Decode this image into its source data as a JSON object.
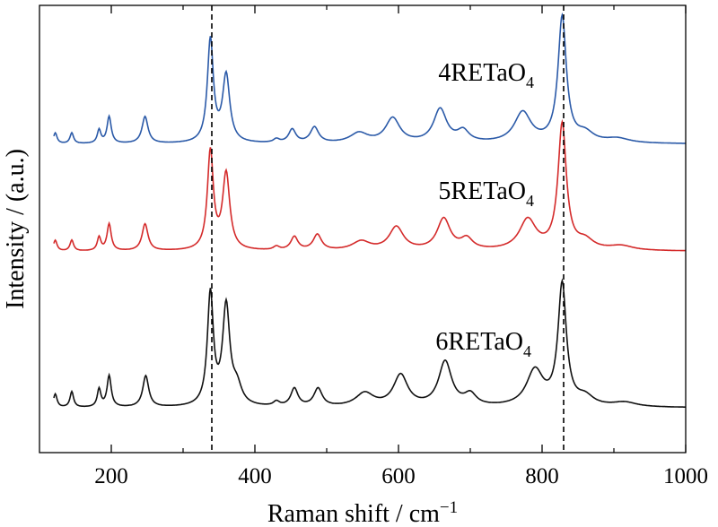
{
  "chart_data": {
    "type": "line",
    "xlabel_main": "Raman shift / cm",
    "xlabel_sup": "−1",
    "ylabel": "Intensity / (a.u.)",
    "xlim": [
      100,
      1000
    ],
    "x_ticks": [
      200,
      400,
      600,
      800,
      1000
    ],
    "x_minor_ticks": [
      300,
      500,
      700,
      900
    ],
    "y_ticks": "none",
    "grid": false,
    "reference_lines_x": [
      340,
      830
    ],
    "series": [
      {
        "name": "4RETaO4",
        "label_main": "4RETaO",
        "label_sub": "4",
        "color": "#2b5aa8",
        "baseline": 0.69,
        "peaks": [
          [
            122,
            0.024,
            3
          ],
          [
            145,
            0.024,
            3
          ],
          [
            183,
            0.03,
            3
          ],
          [
            197,
            0.06,
            3.5
          ],
          [
            247,
            0.06,
            5
          ],
          [
            338,
            0.23,
            5
          ],
          [
            360,
            0.15,
            6
          ],
          [
            430,
            0.008,
            5
          ],
          [
            452,
            0.03,
            6
          ],
          [
            483,
            0.035,
            7
          ],
          [
            545,
            0.022,
            15
          ],
          [
            592,
            0.055,
            12
          ],
          [
            658,
            0.075,
            11
          ],
          [
            690,
            0.025,
            10
          ],
          [
            773,
            0.068,
            14
          ],
          [
            828,
            0.28,
            7
          ],
          [
            860,
            0.02,
            14
          ],
          [
            905,
            0.01,
            20
          ]
        ]
      },
      {
        "name": "5RETaO4",
        "label_main": "5RETaO",
        "label_sub": "4",
        "color": "#d42a2a",
        "baseline": 0.45,
        "peaks": [
          [
            122,
            0.024,
            3
          ],
          [
            145,
            0.024,
            3
          ],
          [
            183,
            0.03,
            3
          ],
          [
            197,
            0.06,
            3.5
          ],
          [
            247,
            0.06,
            5
          ],
          [
            338,
            0.22,
            5
          ],
          [
            360,
            0.17,
            6
          ],
          [
            430,
            0.008,
            5
          ],
          [
            455,
            0.03,
            6
          ],
          [
            487,
            0.035,
            7
          ],
          [
            548,
            0.02,
            15
          ],
          [
            597,
            0.052,
            12
          ],
          [
            663,
            0.07,
            11
          ],
          [
            695,
            0.024,
            10
          ],
          [
            780,
            0.068,
            14
          ],
          [
            828,
            0.28,
            7
          ],
          [
            860,
            0.02,
            14
          ],
          [
            910,
            0.01,
            20
          ]
        ]
      },
      {
        "name": "6RETaO4",
        "label_main": "6RETaO",
        "label_sub": "4",
        "color": "#111111",
        "baseline": 0.1,
        "peaks": [
          [
            122,
            0.03,
            3
          ],
          [
            145,
            0.035,
            3
          ],
          [
            183,
            0.04,
            3
          ],
          [
            197,
            0.07,
            3.5
          ],
          [
            248,
            0.07,
            5
          ],
          [
            338,
            0.25,
            5
          ],
          [
            360,
            0.22,
            6
          ],
          [
            375,
            0.04,
            8
          ],
          [
            430,
            0.01,
            5
          ],
          [
            455,
            0.04,
            6
          ],
          [
            488,
            0.04,
            7
          ],
          [
            553,
            0.03,
            15
          ],
          [
            603,
            0.07,
            12
          ],
          [
            665,
            0.1,
            11
          ],
          [
            700,
            0.025,
            10
          ],
          [
            790,
            0.08,
            14
          ],
          [
            828,
            0.27,
            7
          ],
          [
            860,
            0.02,
            14
          ],
          [
            915,
            0.01,
            20
          ]
        ]
      }
    ]
  }
}
